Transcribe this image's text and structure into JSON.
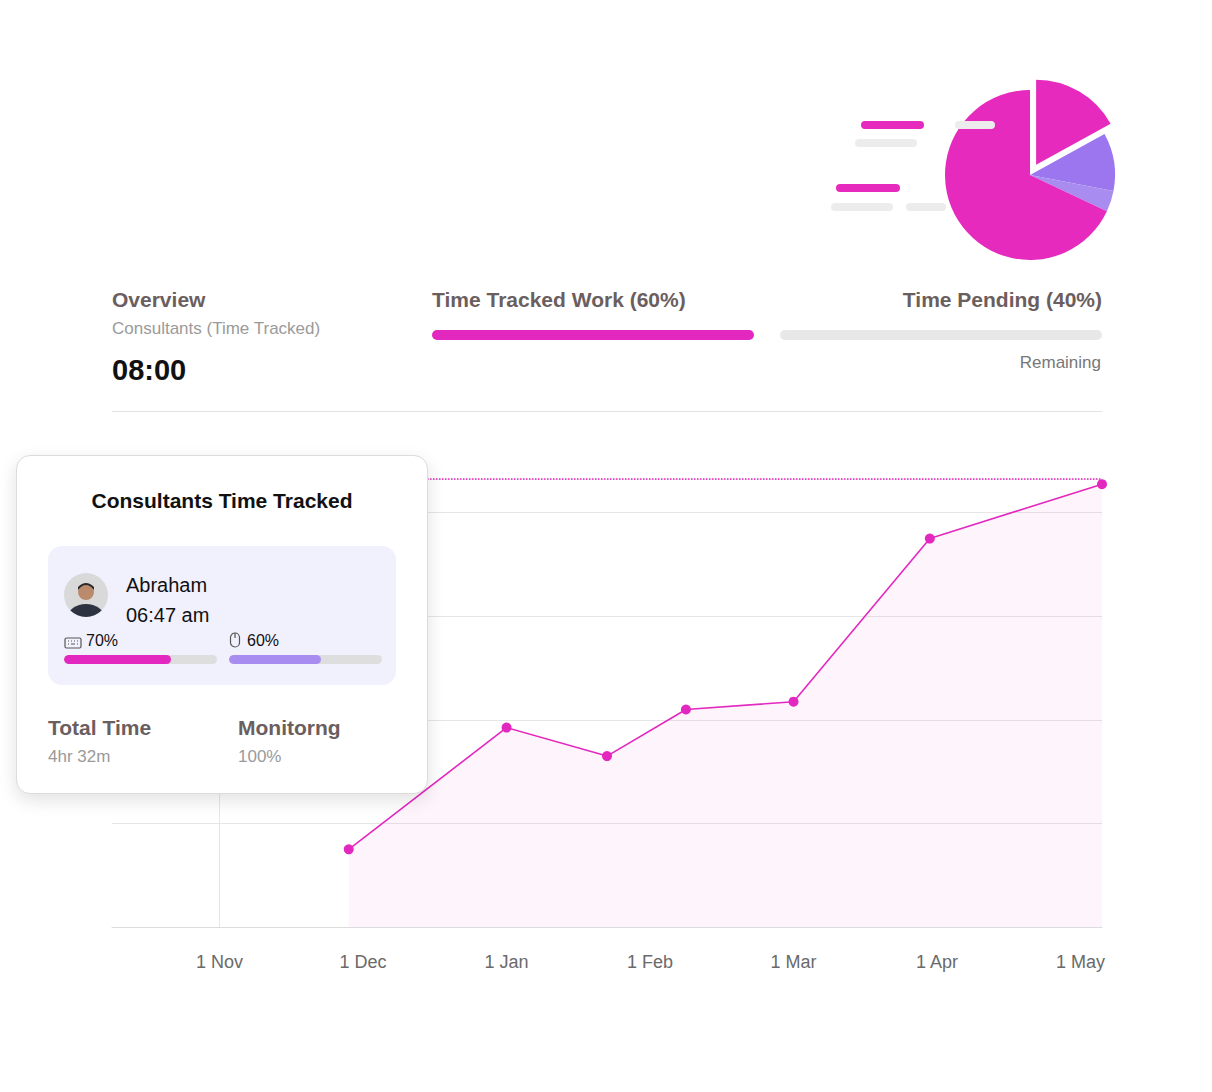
{
  "header": {
    "title": "Overview",
    "subtitle": "Consultants (Time Tracked)",
    "value": "08:00",
    "tracked": "Time Tracked Work (60%)",
    "pending": "Time Pending (40%)",
    "pending_note": "Remaining"
  },
  "card": {
    "title": "Consultants Time Tracked",
    "person": {
      "name": "Abraham",
      "time": "06:47 am",
      "keyboard": {
        "value": 70,
        "label": "70%"
      },
      "mouse": {
        "value": 60,
        "label": "60%"
      }
    },
    "stats": [
      {
        "label": "Total Time",
        "value": "4hr 32m"
      },
      {
        "label": "Monitorng",
        "value": "100%"
      }
    ]
  },
  "chart_data": [
    {
      "type": "line",
      "x": [
        0.9,
        2,
        2.7,
        3.25,
        4,
        4.95,
        6.15
      ],
      "values": [
        15,
        38.5,
        33,
        42,
        43.5,
        75,
        85.5
      ],
      "color": "#e328bf",
      "xlim": [
        -0.75,
        6.15
      ],
      "xticks": [
        {
          "value": 0,
          "label": "1 Nov"
        },
        {
          "value": 1,
          "label": "1 Dec"
        },
        {
          "value": 2,
          "label": "1 Jan"
        },
        {
          "value": 3,
          "label": "1 Feb"
        },
        {
          "value": 4,
          "label": "1 Mar"
        },
        {
          "value": 5,
          "label": "1 Apr"
        },
        {
          "value": 6,
          "label": "1 May"
        }
      ],
      "ylim": [
        0,
        86.5
      ],
      "yticks": [
        0,
        20,
        40,
        60,
        80
      ],
      "grid": true,
      "tick_labels": "x",
      "marker": "circle"
    },
    {
      "type": "pie",
      "values": [
        17,
        11,
        4,
        68
      ],
      "colors": [
        "#e52abd",
        "#9b76ee",
        "#a98cf0",
        "#e52abd"
      ]
    }
  ]
}
